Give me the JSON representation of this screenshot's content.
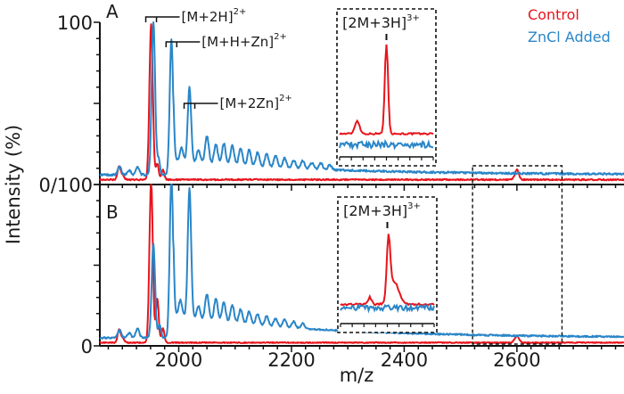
{
  "chart_data": {
    "type": "line",
    "title": "",
    "xlabel": "m/z",
    "ylabel": "Intensity (%)",
    "xlim": [
      1860,
      2790
    ],
    "x_ticks": [
      2000,
      2200,
      2400,
      2600
    ],
    "x_tick_labels": [
      "2000",
      "2200",
      "2400",
      "2600"
    ],
    "x_minor_step": 25,
    "y_tick_labels": {
      "top": "100",
      "middle": "0/100",
      "bottom": "0"
    },
    "ylim": [
      0,
      100
    ],
    "grid": false,
    "legend": {
      "placement": "top-right",
      "entries": [
        {
          "label": "Control",
          "color": "#e8141c"
        },
        {
          "label": "ZnCl Added",
          "color": "#2a86c8"
        }
      ]
    },
    "panels": [
      {
        "label": "A",
        "series": [
          {
            "name": "Control",
            "color": "#e8141c",
            "baseline": 3,
            "peaks": [
              [
                1894,
                8,
                2.5
              ],
              [
                1900,
                3,
                3
              ],
              [
                1951,
                96,
                3
              ],
              [
                1962,
                10,
                2.5
              ],
              [
                1972,
                6,
                2.5
              ],
              [
                2600,
                6,
                3.5
              ]
            ],
            "noise": 0.8
          },
          {
            "name": "ZnCl Added",
            "color": "#2a86c8",
            "baseline": 6,
            "decay": {
              "start": 1990,
              "amp": 9,
              "scale": 260
            },
            "peaks": [
              [
                1895,
                5,
                3
              ],
              [
                1912,
                3,
                3
              ],
              [
                1927,
                5,
                3
              ],
              [
                1955,
                96,
                3
              ],
              [
                1964,
                10,
                2.5
              ],
              [
                1987,
                84,
                3
              ],
              [
                2005,
                8,
                3
              ],
              [
                2019,
                46,
                3
              ],
              [
                2035,
                8,
                3
              ],
              [
                2050,
                17,
                3.2
              ],
              [
                2066,
                12,
                3.2
              ],
              [
                2080,
                13,
                3.2
              ],
              [
                2095,
                12,
                3.2
              ],
              [
                2110,
                11,
                3.2
              ],
              [
                2125,
                10,
                3.2
              ],
              [
                2140,
                9,
                3.2
              ],
              [
                2156,
                8,
                3.2
              ],
              [
                2172,
                7,
                3.2
              ],
              [
                2188,
                6,
                3.2
              ],
              [
                2204,
                5,
                3.2
              ],
              [
                2220,
                5,
                3.2
              ],
              [
                2236,
                4,
                3.2
              ],
              [
                2252,
                4,
                3.2
              ],
              [
                2268,
                3,
                3.2
              ]
            ],
            "noise": 1.2
          }
        ],
        "annotations": [
          {
            "label": "[M+2H]",
            "charge": "2+",
            "mz": 1951
          },
          {
            "label": "[M+H+Zn]",
            "charge": "2+",
            "mz": 1987
          },
          {
            "label": "[M+2Zn]",
            "charge": "2+",
            "mz": 2019
          }
        ],
        "inset": {
          "label": "[2M+3H]",
          "charge": "3+",
          "mz_range": [
            2520,
            2680
          ],
          "series": [
            {
              "name": "Control",
              "color": "#e8141c",
              "baseline": 18,
              "peaks": [
                [
                  2550,
                  12,
                  4
                ],
                [
                  2600,
                  85,
                  2.8
                ]
              ],
              "noise": 1.5
            },
            {
              "name": "ZnCl Added",
              "color": "#2a86c8",
              "baseline": 8,
              "peaks": [],
              "noise": 6
            }
          ]
        }
      },
      {
        "label": "B",
        "series": [
          {
            "name": "Control",
            "color": "#e8141c",
            "baseline": 2,
            "peaks": [
              [
                1894,
                8,
                2.5
              ],
              [
                1900,
                3,
                3
              ],
              [
                1951,
                100,
                3
              ],
              [
                1962,
                27,
                2.5
              ],
              [
                1972,
                9,
                2.5
              ],
              [
                2600,
                4,
                4
              ]
            ],
            "noise": 0.6
          },
          {
            "name": "ZnCl Added",
            "color": "#2a86c8",
            "baseline": 5,
            "decay": {
              "start": 1990,
              "amp": 14,
              "scale": 260
            },
            "peaks": [
              [
                1895,
                5,
                3
              ],
              [
                1912,
                3,
                3
              ],
              [
                1927,
                6,
                3
              ],
              [
                1955,
                58,
                3
              ],
              [
                1966,
                8,
                2.5
              ],
              [
                1987,
                100,
                3
              ],
              [
                2003,
                10,
                3
              ],
              [
                2019,
                80,
                3
              ],
              [
                2035,
                8,
                3
              ],
              [
                2050,
                16,
                3.2
              ],
              [
                2066,
                14,
                3.2
              ],
              [
                2080,
                12,
                3.2
              ],
              [
                2095,
                11,
                3.2
              ],
              [
                2110,
                9,
                3.2
              ],
              [
                2125,
                8,
                3.2
              ],
              [
                2140,
                7,
                3.2
              ],
              [
                2156,
                6,
                3.2
              ],
              [
                2172,
                5,
                3.2
              ],
              [
                2188,
                5,
                3.2
              ],
              [
                2204,
                4,
                3.2
              ],
              [
                2220,
                3,
                3.2
              ]
            ],
            "noise": 1.0
          }
        ],
        "inset": {
          "label": "[2M+3H]",
          "charge": "3+",
          "mz_range": [
            2520,
            2680
          ],
          "series": [
            {
              "name": "Control",
              "color": "#e8141c",
              "baseline": 18,
              "peaks": [
                [
                  2570,
                  8,
                  3
                ],
                [
                  2602,
                  70,
                  3
                ],
                [
                  2612,
                  25,
                  8
                ]
              ],
              "noise": 2
            },
            {
              "name": "ZnCl Added",
              "color": "#2a86c8",
              "baseline": 14,
              "peaks": [],
              "noise": 6
            }
          ]
        }
      }
    ],
    "highlight_region": {
      "mz_range": [
        2515,
        2680
      ],
      "style": "dashed"
    }
  }
}
